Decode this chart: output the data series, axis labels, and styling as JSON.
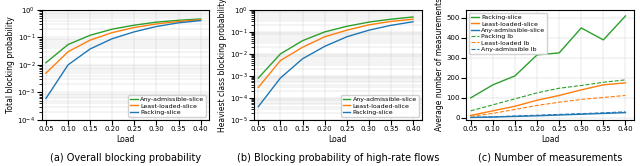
{
  "fig_width": 6.4,
  "fig_height": 1.66,
  "dpi": 100,
  "load_values": [
    0.05,
    0.1,
    0.15,
    0.2,
    0.25,
    0.3,
    0.35,
    0.4
  ],
  "plot1": {
    "ylabel": "Total blocking probability",
    "xlabel": "Load",
    "caption": "(a) Overall blocking probability",
    "ylim": [
      0.0001,
      1.0
    ],
    "xlim": [
      0.04,
      0.42
    ],
    "any_admissible": [
      0.012,
      0.055,
      0.12,
      0.2,
      0.28,
      0.36,
      0.42,
      0.47
    ],
    "least_loaded": [
      0.005,
      0.03,
      0.08,
      0.15,
      0.23,
      0.31,
      0.38,
      0.44
    ],
    "packing": [
      0.0006,
      0.01,
      0.038,
      0.09,
      0.16,
      0.25,
      0.34,
      0.41
    ],
    "colors": {
      "any_admissible": "#2ca02c",
      "least_loaded": "#ff7f0e",
      "packing": "#1f77b4"
    },
    "legend_labels": [
      "Any-admissible-slice",
      "Least-loaded-slice",
      "Packing-slice"
    ]
  },
  "plot2": {
    "ylabel": "Heaviest class blocking probability",
    "xlabel": "Load",
    "caption": "(b) Blocking probability of high-rate flows",
    "ylim": [
      1e-05,
      1.0
    ],
    "xlim": [
      0.04,
      0.42
    ],
    "any_admissible": [
      0.0008,
      0.01,
      0.04,
      0.1,
      0.18,
      0.28,
      0.38,
      0.48
    ],
    "least_loaded": [
      0.0003,
      0.005,
      0.02,
      0.06,
      0.12,
      0.21,
      0.3,
      0.38
    ],
    "packing": [
      4e-05,
      0.0008,
      0.006,
      0.022,
      0.06,
      0.12,
      0.2,
      0.29
    ],
    "colors": {
      "any_admissible": "#2ca02c",
      "least_loaded": "#ff7f0e",
      "packing": "#1f77b4"
    },
    "legend_labels": [
      "Any-admissible-slice",
      "Least-loaded-slice",
      "Packing-slice"
    ]
  },
  "plot3": {
    "ylabel": "Average number of measurements",
    "xlabel": "Load",
    "caption": "(c) Number of measurements",
    "ylim": [
      -10,
      540
    ],
    "xlim": [
      0.04,
      0.42
    ],
    "packing_solid": [
      100,
      165,
      210,
      315,
      325,
      450,
      390,
      510
    ],
    "least_loaded_solid": [
      12,
      35,
      58,
      88,
      112,
      140,
      165,
      175
    ],
    "any_admissible_solid": [
      2,
      4,
      7,
      10,
      14,
      18,
      22,
      26
    ],
    "packing_dashed": [
      35,
      65,
      95,
      125,
      148,
      162,
      178,
      190
    ],
    "least_loaded_dashed": [
      8,
      22,
      42,
      62,
      78,
      92,
      102,
      112
    ],
    "any_admissible_dashed": [
      2,
      5,
      9,
      13,
      17,
      21,
      25,
      30
    ],
    "colors": {
      "packing": "#2ca02c",
      "least_loaded": "#ff7f0e",
      "any_admissible": "#1f77b4"
    }
  },
  "caption_fontsize": 7,
  "tick_fontsize": 5,
  "label_fontsize": 5.5,
  "legend_fontsize": 4.5
}
